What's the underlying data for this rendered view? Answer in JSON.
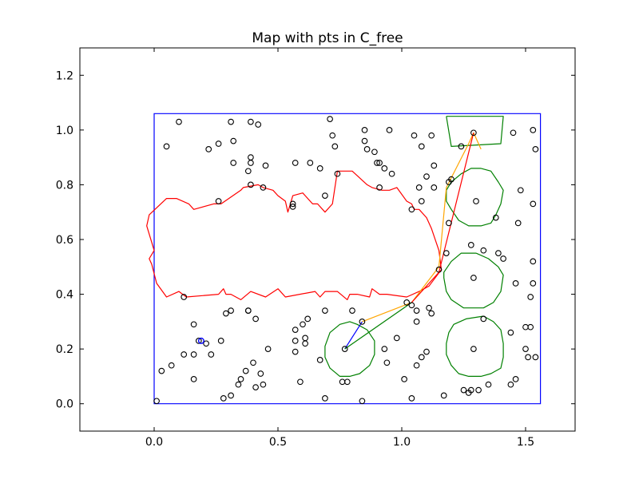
{
  "chart_data": {
    "type": "scatter",
    "title": "Map with pts in C_free",
    "xlabel": "",
    "ylabel": "",
    "xlim": [
      -0.3,
      1.7
    ],
    "ylim": [
      -0.1,
      1.3
    ],
    "xticks": [
      0.0,
      0.5,
      1.0,
      1.5
    ],
    "xtick_labels": [
      "0.0",
      "0.5",
      "1.0",
      "1.5"
    ],
    "yticks": [
      0.0,
      0.2,
      0.4,
      0.6,
      0.8,
      1.0,
      1.2
    ],
    "ytick_labels": [
      "0.0",
      "0.2",
      "0.4",
      "0.6",
      "0.8",
      "1.0",
      "1.2"
    ],
    "grid": false,
    "colors": {
      "boundary": "#0000ff",
      "obstacle_large": "#ff0000",
      "obstacle_small": "#008000",
      "path_orange": "#ffa500",
      "path_blue": "#0000ff",
      "point": "#000000",
      "highlight_point": "#0000ff"
    },
    "boundary": [
      [
        0.0,
        0.0
      ],
      [
        1.56,
        0.0
      ],
      [
        1.56,
        1.06
      ],
      [
        0.0,
        1.06
      ]
    ],
    "obstacles": [
      {
        "color": "red",
        "points": [
          [
            0.0,
            0.56
          ],
          [
            -0.03,
            0.65
          ],
          [
            -0.02,
            0.69
          ],
          [
            0.05,
            0.75
          ],
          [
            0.09,
            0.75
          ],
          [
            0.14,
            0.73
          ],
          [
            0.16,
            0.71
          ],
          [
            0.24,
            0.73
          ],
          [
            0.27,
            0.73
          ],
          [
            0.35,
            0.78
          ],
          [
            0.36,
            0.79
          ],
          [
            0.42,
            0.8
          ],
          [
            0.44,
            0.79
          ],
          [
            0.48,
            0.78
          ],
          [
            0.5,
            0.76
          ],
          [
            0.53,
            0.74
          ],
          [
            0.54,
            0.7
          ],
          [
            0.56,
            0.76
          ],
          [
            0.6,
            0.77
          ],
          [
            0.64,
            0.73
          ],
          [
            0.66,
            0.73
          ],
          [
            0.69,
            0.7
          ],
          [
            0.72,
            0.73
          ],
          [
            0.74,
            0.85
          ],
          [
            0.8,
            0.85
          ],
          [
            0.86,
            0.8
          ],
          [
            0.88,
            0.79
          ],
          [
            0.92,
            0.78
          ],
          [
            0.95,
            0.78
          ],
          [
            0.98,
            0.79
          ],
          [
            1.02,
            0.74
          ],
          [
            1.04,
            0.73
          ],
          [
            1.05,
            0.71
          ],
          [
            1.07,
            0.71
          ],
          [
            1.1,
            0.68
          ],
          [
            1.12,
            0.64
          ],
          [
            1.15,
            0.56
          ],
          [
            1.16,
            0.49
          ],
          [
            1.11,
            0.43
          ],
          [
            1.07,
            0.41
          ],
          [
            1.02,
            0.39
          ],
          [
            0.94,
            0.4
          ],
          [
            0.91,
            0.4
          ],
          [
            0.88,
            0.42
          ],
          [
            0.87,
            0.39
          ],
          [
            0.82,
            0.4
          ],
          [
            0.79,
            0.4
          ],
          [
            0.78,
            0.38
          ],
          [
            0.74,
            0.41
          ],
          [
            0.69,
            0.41
          ],
          [
            0.67,
            0.39
          ],
          [
            0.65,
            0.41
          ],
          [
            0.53,
            0.39
          ],
          [
            0.5,
            0.42
          ],
          [
            0.45,
            0.39
          ],
          [
            0.39,
            0.41
          ],
          [
            0.35,
            0.38
          ],
          [
            0.31,
            0.4
          ],
          [
            0.29,
            0.4
          ],
          [
            0.28,
            0.42
          ],
          [
            0.26,
            0.4
          ],
          [
            0.13,
            0.39
          ],
          [
            0.1,
            0.41
          ],
          [
            0.05,
            0.39
          ],
          [
            0.01,
            0.44
          ],
          [
            -0.01,
            0.51
          ],
          [
            -0.02,
            0.53
          ],
          [
            0.0,
            0.56
          ]
        ]
      },
      {
        "color": "green",
        "points": [
          [
            1.18,
            1.05
          ],
          [
            1.41,
            1.05
          ],
          [
            1.4,
            0.95
          ],
          [
            1.2,
            0.94
          ],
          [
            1.18,
            1.05
          ]
        ]
      },
      {
        "color": "green",
        "points": [
          [
            1.32,
            0.86
          ],
          [
            1.36,
            0.85
          ],
          [
            1.39,
            0.81
          ],
          [
            1.41,
            0.78
          ],
          [
            1.4,
            0.73
          ],
          [
            1.38,
            0.69
          ],
          [
            1.36,
            0.66
          ],
          [
            1.32,
            0.65
          ],
          [
            1.27,
            0.65
          ],
          [
            1.23,
            0.67
          ],
          [
            1.2,
            0.71
          ],
          [
            1.18,
            0.74
          ],
          [
            1.18,
            0.78
          ],
          [
            1.2,
            0.81
          ],
          [
            1.24,
            0.84
          ],
          [
            1.28,
            0.86
          ],
          [
            1.32,
            0.86
          ]
        ]
      },
      {
        "color": "green",
        "points": [
          [
            1.3,
            0.55
          ],
          [
            1.35,
            0.53
          ],
          [
            1.39,
            0.5
          ],
          [
            1.41,
            0.47
          ],
          [
            1.4,
            0.41
          ],
          [
            1.37,
            0.37
          ],
          [
            1.33,
            0.35
          ],
          [
            1.28,
            0.35
          ],
          [
            1.25,
            0.35
          ],
          [
            1.2,
            0.38
          ],
          [
            1.18,
            0.41
          ],
          [
            1.17,
            0.46
          ],
          [
            1.17,
            0.48
          ],
          [
            1.2,
            0.52
          ],
          [
            1.24,
            0.55
          ],
          [
            1.3,
            0.55
          ]
        ]
      },
      {
        "color": "green",
        "points": [
          [
            1.33,
            0.32
          ],
          [
            1.37,
            0.3
          ],
          [
            1.4,
            0.27
          ],
          [
            1.41,
            0.22
          ],
          [
            1.41,
            0.17
          ],
          [
            1.4,
            0.13
          ],
          [
            1.36,
            0.11
          ],
          [
            1.32,
            0.1
          ],
          [
            1.27,
            0.1
          ],
          [
            1.23,
            0.11
          ],
          [
            1.2,
            0.14
          ],
          [
            1.18,
            0.18
          ],
          [
            1.18,
            0.22
          ],
          [
            1.19,
            0.26
          ],
          [
            1.21,
            0.29
          ],
          [
            1.26,
            0.31
          ],
          [
            1.33,
            0.32
          ]
        ]
      },
      {
        "color": "green",
        "points": [
          [
            0.82,
            0.29
          ],
          [
            0.86,
            0.27
          ],
          [
            0.89,
            0.23
          ],
          [
            0.89,
            0.18
          ],
          [
            0.87,
            0.14
          ],
          [
            0.83,
            0.11
          ],
          [
            0.79,
            0.1
          ],
          [
            0.75,
            0.1
          ],
          [
            0.71,
            0.13
          ],
          [
            0.69,
            0.17
          ],
          [
            0.69,
            0.21
          ],
          [
            0.71,
            0.26
          ],
          [
            0.75,
            0.29
          ],
          [
            0.79,
            0.3
          ],
          [
            0.82,
            0.29
          ]
        ]
      }
    ],
    "line_series": [
      {
        "color": "orange",
        "points": [
          [
            0.84,
            0.3
          ],
          [
            1.04,
            0.37
          ],
          [
            1.15,
            0.5
          ],
          [
            1.18,
            0.79
          ],
          [
            1.27,
            0.95
          ],
          [
            1.29,
            0.99
          ]
        ]
      },
      {
        "color": "orange",
        "points": [
          [
            1.29,
            0.99
          ],
          [
            1.32,
            0.93
          ]
        ]
      },
      {
        "color": "blue",
        "points": [
          [
            0.77,
            0.2
          ],
          [
            0.84,
            0.3
          ]
        ]
      },
      {
        "color": "green",
        "points": [
          [
            0.77,
            0.2
          ],
          [
            1.04,
            0.37
          ]
        ]
      },
      {
        "color": "red",
        "points": [
          [
            1.04,
            0.37
          ],
          [
            1.15,
            0.48
          ],
          [
            1.29,
            0.99
          ]
        ]
      }
    ],
    "highlight_points": [
      [
        0.19,
        0.23
      ]
    ],
    "points": [
      [
        0.1,
        1.03
      ],
      [
        0.05,
        0.94
      ],
      [
        0.22,
        0.93
      ],
      [
        0.26,
        0.95
      ],
      [
        0.31,
        1.03
      ],
      [
        0.32,
        0.96
      ],
      [
        0.39,
        1.03
      ],
      [
        0.42,
        1.02
      ],
      [
        0.39,
        0.9
      ],
      [
        0.39,
        0.88
      ],
      [
        0.32,
        0.88
      ],
      [
        0.38,
        0.85
      ],
      [
        0.45,
        0.87
      ],
      [
        0.57,
        0.88
      ],
      [
        0.63,
        0.88
      ],
      [
        0.67,
        0.86
      ],
      [
        0.71,
        1.04
      ],
      [
        0.72,
        0.98
      ],
      [
        0.73,
        0.94
      ],
      [
        0.74,
        0.84
      ],
      [
        0.85,
        1.0
      ],
      [
        0.95,
        1.0
      ],
      [
        0.85,
        0.96
      ],
      [
        0.86,
        0.93
      ],
      [
        0.89,
        0.92
      ],
      [
        0.9,
        0.88
      ],
      [
        0.91,
        0.88
      ],
      [
        0.93,
        0.86
      ],
      [
        0.96,
        0.84
      ],
      [
        1.05,
        0.98
      ],
      [
        1.08,
        0.94
      ],
      [
        1.12,
        0.98
      ],
      [
        1.13,
        0.87
      ],
      [
        1.1,
        0.83
      ],
      [
        1.13,
        0.79
      ],
      [
        1.07,
        0.79
      ],
      [
        1.08,
        0.74
      ],
      [
        1.04,
        0.71
      ],
      [
        1.19,
        0.81
      ],
      [
        1.2,
        0.82
      ],
      [
        0.39,
        0.8
      ],
      [
        0.44,
        0.79
      ],
      [
        0.26,
        0.74
      ],
      [
        0.56,
        0.73
      ],
      [
        0.56,
        0.72
      ],
      [
        0.69,
        0.76
      ],
      [
        0.91,
        0.79
      ],
      [
        1.38,
        0.68
      ],
      [
        1.3,
        0.74
      ],
      [
        1.24,
        0.94
      ],
      [
        1.29,
        0.99
      ],
      [
        1.45,
        0.99
      ],
      [
        1.53,
        1.0
      ],
      [
        1.54,
        0.93
      ],
      [
        1.48,
        0.78
      ],
      [
        1.53,
        0.73
      ],
      [
        1.47,
        0.66
      ],
      [
        1.19,
        0.66
      ],
      [
        1.28,
        0.58
      ],
      [
        1.33,
        0.56
      ],
      [
        1.39,
        0.55
      ],
      [
        1.41,
        0.53
      ],
      [
        1.18,
        0.55
      ],
      [
        1.15,
        0.49
      ],
      [
        1.29,
        0.46
      ],
      [
        1.46,
        0.44
      ],
      [
        1.53,
        0.44
      ],
      [
        1.53,
        0.52
      ],
      [
        1.52,
        0.39
      ],
      [
        1.44,
        0.26
      ],
      [
        1.5,
        0.28
      ],
      [
        1.52,
        0.28
      ],
      [
        1.5,
        0.2
      ],
      [
        1.51,
        0.17
      ],
      [
        1.54,
        0.17
      ],
      [
        1.46,
        0.09
      ],
      [
        1.44,
        0.07
      ],
      [
        1.35,
        0.07
      ],
      [
        1.31,
        0.05
      ],
      [
        1.33,
        0.31
      ],
      [
        1.29,
        0.2
      ],
      [
        1.25,
        0.05
      ],
      [
        1.27,
        0.04
      ],
      [
        1.28,
        0.05
      ],
      [
        1.17,
        0.03
      ],
      [
        1.12,
        0.33
      ],
      [
        1.11,
        0.35
      ],
      [
        1.06,
        0.3
      ],
      [
        1.06,
        0.34
      ],
      [
        1.02,
        0.37
      ],
      [
        1.04,
        0.36
      ],
      [
        1.1,
        0.19
      ],
      [
        1.08,
        0.17
      ],
      [
        1.06,
        0.14
      ],
      [
        1.01,
        0.09
      ],
      [
        1.04,
        0.02
      ],
      [
        0.98,
        0.24
      ],
      [
        0.93,
        0.2
      ],
      [
        0.94,
        0.15
      ],
      [
        0.84,
        0.01
      ],
      [
        0.8,
        0.34
      ],
      [
        0.84,
        0.3
      ],
      [
        0.78,
        0.08
      ],
      [
        0.77,
        0.2
      ],
      [
        0.69,
        0.34
      ],
      [
        0.69,
        0.02
      ],
      [
        0.67,
        0.16
      ],
      [
        0.61,
        0.24
      ],
      [
        0.61,
        0.22
      ],
      [
        0.6,
        0.29
      ],
      [
        0.57,
        0.27
      ],
      [
        0.57,
        0.19
      ],
      [
        0.57,
        0.23
      ],
      [
        0.59,
        0.08
      ],
      [
        0.46,
        0.2
      ],
      [
        0.44,
        0.07
      ],
      [
        0.43,
        0.11
      ],
      [
        0.41,
        0.06
      ],
      [
        0.41,
        0.31
      ],
      [
        0.4,
        0.15
      ],
      [
        0.38,
        0.34
      ],
      [
        0.38,
        0.34
      ],
      [
        0.37,
        0.12
      ],
      [
        0.35,
        0.09
      ],
      [
        0.34,
        0.07
      ],
      [
        0.29,
        0.33
      ],
      [
        0.31,
        0.34
      ],
      [
        0.27,
        0.23
      ],
      [
        0.23,
        0.18
      ],
      [
        0.21,
        0.22
      ],
      [
        0.18,
        0.23
      ],
      [
        0.16,
        0.29
      ],
      [
        0.16,
        0.18
      ],
      [
        0.16,
        0.09
      ],
      [
        0.12,
        0.18
      ],
      [
        0.12,
        0.39
      ],
      [
        0.07,
        0.14
      ],
      [
        0.03,
        0.12
      ],
      [
        0.01,
        0.01
      ],
      [
        0.28,
        0.02
      ],
      [
        0.31,
        0.03
      ],
      [
        0.76,
        0.08
      ],
      [
        0.62,
        0.31
      ]
    ]
  }
}
